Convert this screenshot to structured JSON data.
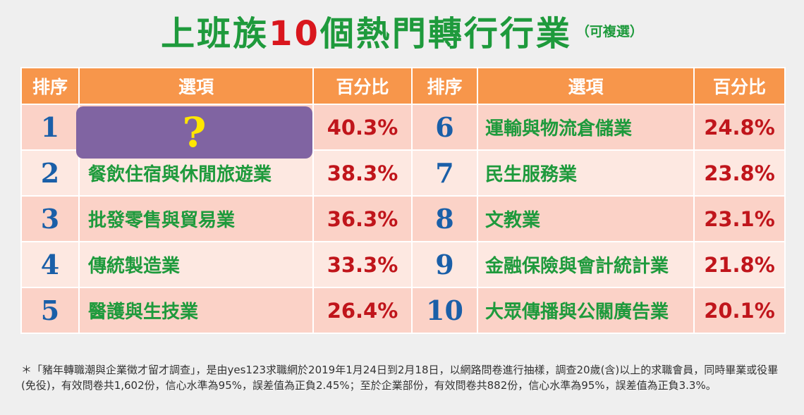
{
  "title": {
    "prefix": "上班族",
    "number": "10",
    "suffix": "個熱門轉行行業",
    "note": "（可複選）"
  },
  "table": {
    "headers": [
      "排序",
      "選項",
      "百分比",
      "排序",
      "選項",
      "百分比"
    ],
    "hidden_marker": "?",
    "rows": [
      {
        "left": {
          "rank": "1",
          "option": "",
          "percent": "40.3%"
        },
        "right": {
          "rank": "6",
          "option": "運輸與物流倉儲業",
          "percent": "24.8%"
        }
      },
      {
        "left": {
          "rank": "2",
          "option": "餐飲住宿與休閒旅遊業",
          "percent": "38.3%"
        },
        "right": {
          "rank": "7",
          "option": "民生服務業",
          "percent": "23.8%"
        }
      },
      {
        "left": {
          "rank": "3",
          "option": "批發零售與貿易業",
          "percent": "36.3%"
        },
        "right": {
          "rank": "8",
          "option": "文教業",
          "percent": "23.1%"
        }
      },
      {
        "left": {
          "rank": "4",
          "option": "傳統製造業",
          "percent": "33.3%"
        },
        "right": {
          "rank": "9",
          "option": "金融保險與會計統計業",
          "percent": "21.8%"
        }
      },
      {
        "left": {
          "rank": "5",
          "option": "醫護與生技業",
          "percent": "26.4%"
        },
        "right": {
          "rank": "10",
          "option": "大眾傳播與公關廣告業",
          "percent": "20.1%"
        }
      }
    ]
  },
  "footnote": "＊「豬年轉職潮與企業徵才留才調查」，是由yes123求職網於2019年1月24日到2月18日，以網路問卷進行抽樣，調查20歲(含)以上的求職會員，同時畢業或役畢(免役)，有效問卷共1,602份，信心水準為95%，誤差值為正負2.45%；至於企業部份，有效問卷共882份，信心水準為95%，誤差值為正負3.3%。",
  "colors": {
    "header_bg": "#f7964b",
    "row_odd": "#fbd2c7",
    "row_even": "#fde8e1",
    "title_green": "#1e9a3c",
    "title_red": "#d9161d",
    "rank_blue": "#1a5fa8",
    "percent_red": "#c0151b",
    "mystery_purple": "#8064a2",
    "qmark_yellow": "#ffe600"
  }
}
